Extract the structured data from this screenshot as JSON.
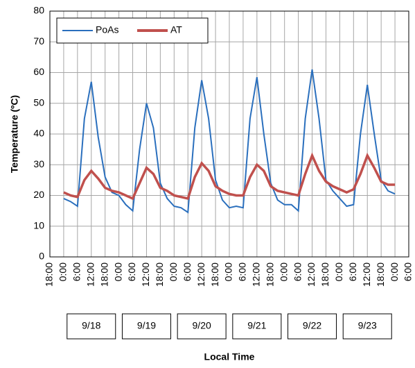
{
  "chart_data": {
    "type": "line",
    "x": [
      6,
      9,
      12,
      15,
      18,
      21,
      24,
      27,
      30,
      33,
      36,
      39,
      42,
      45,
      48,
      51,
      54,
      57,
      60,
      63,
      66,
      69,
      72,
      75,
      78,
      81,
      84,
      87,
      90,
      93,
      96,
      99,
      102,
      105,
      108,
      111,
      114,
      117,
      120,
      123,
      126,
      129,
      132,
      135,
      138,
      141,
      144,
      147,
      150
    ],
    "series": [
      {
        "name": "PoAs",
        "color": "#2a6fbd",
        "values": [
          19,
          18,
          16.5,
          45,
          57,
          39,
          26,
          21,
          20,
          17,
          15,
          35,
          50,
          42,
          24,
          19,
          16.5,
          16,
          14.5,
          42,
          57.5,
          45,
          25,
          18.5,
          16,
          16.5,
          16,
          45,
          58.5,
          40,
          24,
          18.5,
          17,
          17,
          15,
          45,
          61,
          45,
          25,
          21.5,
          19,
          16.5,
          17,
          40,
          56,
          40,
          25,
          21.5,
          20.5
        ]
      },
      {
        "name": "AT",
        "color": "#c0504d",
        "values": [
          21,
          20,
          19.5,
          25,
          28,
          25.5,
          22.5,
          21.5,
          21,
          20,
          19,
          24,
          29,
          27,
          22.5,
          21.5,
          20,
          19.5,
          19,
          26,
          30.5,
          28,
          23,
          21.5,
          20.5,
          20,
          20,
          26,
          30,
          28,
          23,
          21.5,
          21,
          20.5,
          20,
          27,
          33,
          28,
          24.5,
          23,
          22,
          21,
          22,
          27,
          33,
          29,
          24.5,
          23.5,
          23.5
        ]
      }
    ],
    "xlim": [
      0,
      156
    ],
    "xticks": [
      {
        "value": 0,
        "label": "18:00"
      },
      {
        "value": 6,
        "label": "0:00"
      },
      {
        "value": 12,
        "label": "6:00"
      },
      {
        "value": 18,
        "label": "12:00"
      },
      {
        "value": 24,
        "label": "18:00"
      },
      {
        "value": 30,
        "label": "0:00"
      },
      {
        "value": 36,
        "label": "6:00"
      },
      {
        "value": 42,
        "label": "12:00"
      },
      {
        "value": 48,
        "label": "18:00"
      },
      {
        "value": 54,
        "label": "0:00"
      },
      {
        "value": 60,
        "label": "6:00"
      },
      {
        "value": 66,
        "label": "12:00"
      },
      {
        "value": 72,
        "label": "18:00"
      },
      {
        "value": 78,
        "label": "0:00"
      },
      {
        "value": 84,
        "label": "6:00"
      },
      {
        "value": 90,
        "label": "12:00"
      },
      {
        "value": 96,
        "label": "18:00"
      },
      {
        "value": 102,
        "label": "0:00"
      },
      {
        "value": 108,
        "label": "6:00"
      },
      {
        "value": 114,
        "label": "12:00"
      },
      {
        "value": 120,
        "label": "18:00"
      },
      {
        "value": 126,
        "label": "0:00"
      },
      {
        "value": 132,
        "label": "6:00"
      },
      {
        "value": 138,
        "label": "12:00"
      },
      {
        "value": 144,
        "label": "18:00"
      },
      {
        "value": 150,
        "label": "0:00"
      },
      {
        "value": 156,
        "label": "6:00"
      }
    ],
    "ylim": [
      0,
      80
    ],
    "yticks": [
      0,
      10,
      20,
      30,
      40,
      50,
      60,
      70,
      80
    ],
    "grid": true,
    "legend": "top-left",
    "date_labels": [
      "9/18",
      "9/19",
      "9/20",
      "9/21",
      "9/22",
      "9/23"
    ],
    "y_label": "Temperature (ºC)",
    "x_label": "Local Time"
  }
}
